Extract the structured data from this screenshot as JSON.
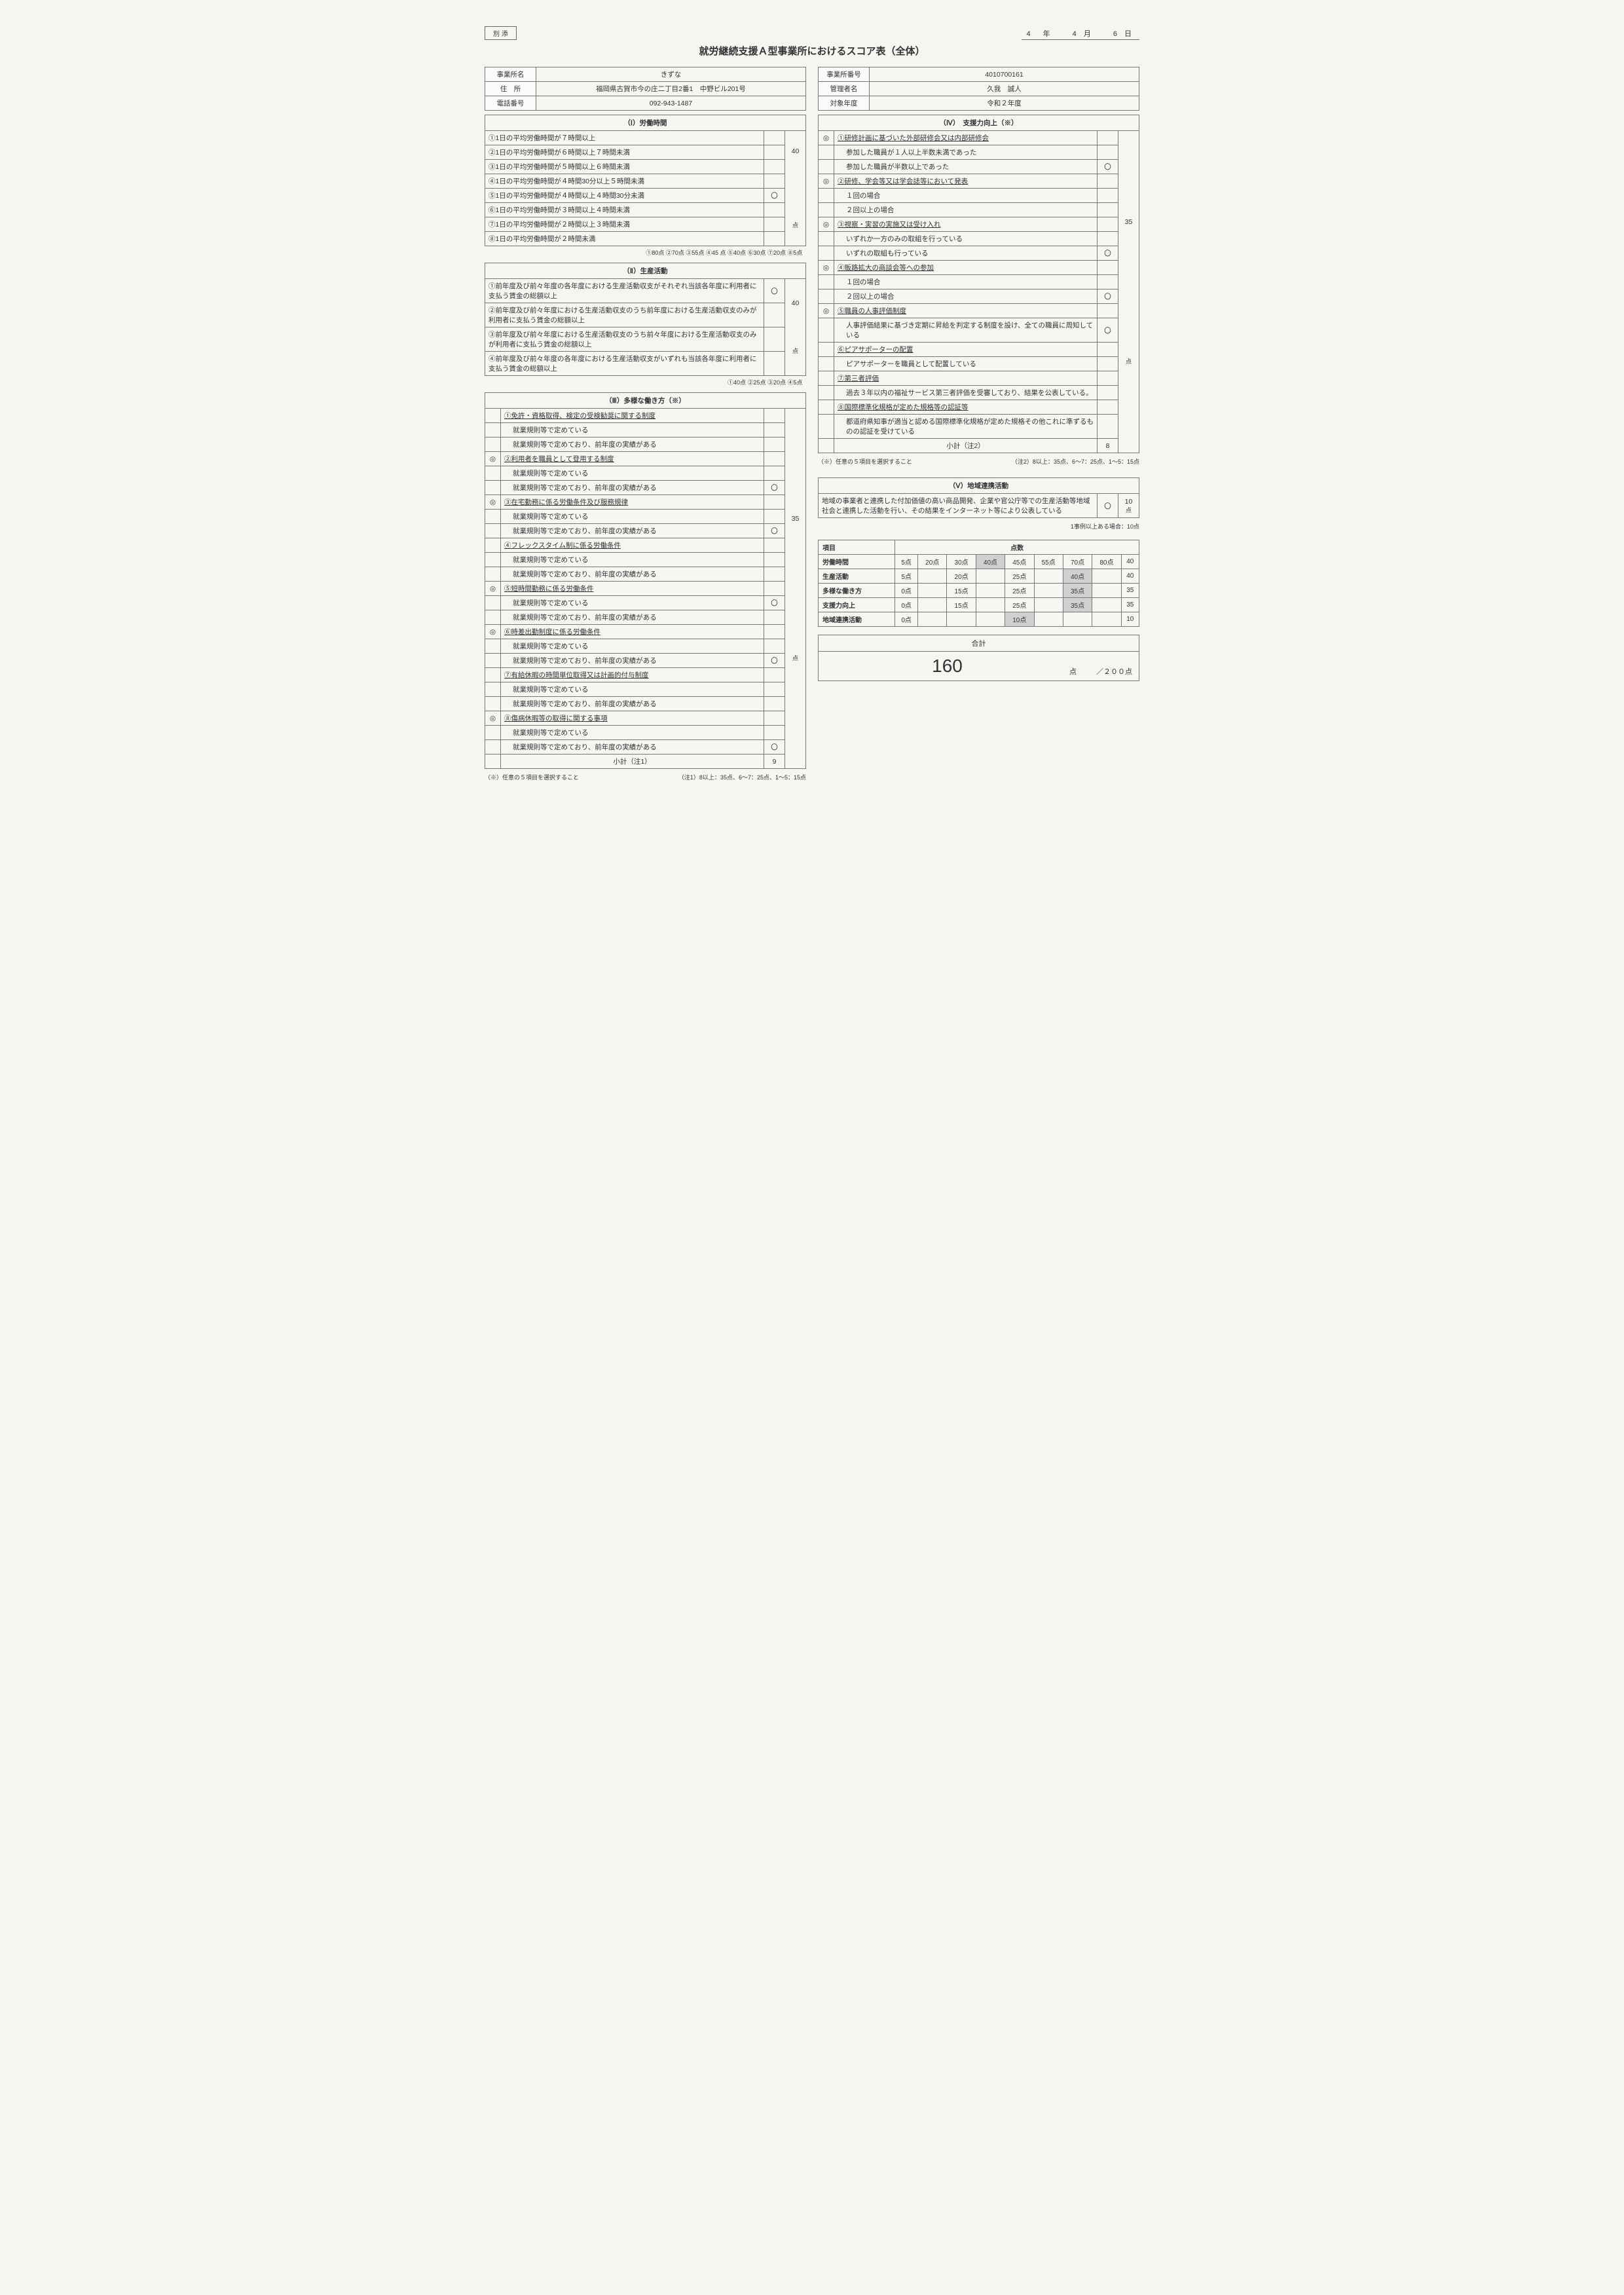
{
  "attach": "別 添",
  "date": "4　年　　4 月　　6 日",
  "title": "就労継続支援Ａ型事業所におけるスコア表（全体）",
  "left_info": {
    "rows": [
      {
        "l": "事業所名",
        "v": "きずな"
      },
      {
        "l": "住　所",
        "v": "福岡県古賀市今の庄二丁目2番1　中野ビル201号"
      },
      {
        "l": "電話番号",
        "v": "092-943-1487"
      }
    ]
  },
  "right_info": {
    "rows": [
      {
        "l": "事業所番号",
        "v": "4010700161"
      },
      {
        "l": "管理者名",
        "v": "久我　誠人"
      },
      {
        "l": "対象年度",
        "v": "令和２年度"
      }
    ]
  },
  "s1": {
    "hdr": "（Ⅰ）労働時間",
    "rows": [
      {
        "t": "①1日の平均労働時間が７時間以上",
        "m": ""
      },
      {
        "t": "②1日の平均労働時間が６時間以上７時間未満",
        "m": ""
      },
      {
        "t": "③1日の平均労働時間が５時間以上６時間未満",
        "m": ""
      },
      {
        "t": "④1日の平均労働時間が４時間30分以上５時間未満",
        "m": ""
      },
      {
        "t": "⑤1日の平均労働時間が４時間以上４時間30分未満",
        "m": "〇"
      },
      {
        "t": "⑥1日の平均労働時間が３時間以上４時間未満",
        "m": ""
      },
      {
        "t": "⑦1日の平均労働時間が２時間以上３時間未満",
        "m": ""
      },
      {
        "t": "⑧1日の平均労働時間が２時間未満",
        "m": ""
      }
    ],
    "score": "40",
    "unit": "点",
    "note": "①80点 ②70点 ③55点 ④45 点 ⑤40点 ⑥30点 ⑦20点 ⑧5点"
  },
  "s2": {
    "hdr": "（Ⅱ）生産活動",
    "rows": [
      {
        "t": "①前年度及び前々年度の各年度における生産活動収支がそれぞれ当該各年度に利用者に支払う賃金の総額以上",
        "m": "〇"
      },
      {
        "t": "②前年度及び前々年度における生産活動収支のうち前年度における生産活動収支のみが利用者に支払う賃金の総額以上",
        "m": ""
      },
      {
        "t": "③前年度及び前々年度における生産活動収支のうち前々年度における生産活動収支のみが利用者に支払う賃金の総額以上",
        "m": ""
      },
      {
        "t": "④前年度及び前々年度の各年度における生産活動収支がいずれも当該各年度に利用者に支払う賃金の総額以上",
        "m": ""
      }
    ],
    "score": "40",
    "unit": "点",
    "note": "①40点 ②25点 ③20点 ④5点"
  },
  "s3": {
    "hdr": "（Ⅲ）多様な働き方（※）",
    "groups": [
      {
        "d": "",
        "h": "①免許・資格取得、検定の受検勧奨に関する制度",
        "a": "就業規則等で定めている",
        "am": "",
        "b": "就業規則等で定めており、前年度の実績がある",
        "bm": ""
      },
      {
        "d": "◎",
        "h": "②利用者を職員として登用する制度",
        "a": "就業規則等で定めている",
        "am": "",
        "b": "就業規則等で定めており、前年度の実績がある",
        "bm": "〇"
      },
      {
        "d": "◎",
        "h": "③在宅勤務に係る労働条件及び服務規律",
        "a": "就業規則等で定めている",
        "am": "",
        "b": "就業規則等で定めており、前年度の実績がある",
        "bm": "〇"
      },
      {
        "d": "",
        "h": "④フレックスタイム制に係る労働条件",
        "a": "就業規則等で定めている",
        "am": "",
        "b": "就業規則等で定めており、前年度の実績がある",
        "bm": ""
      },
      {
        "d": "◎",
        "h": "⑤短時間勤務に係る労働条件",
        "a": "就業規則等で定めている",
        "am": "〇",
        "b": "就業規則等で定めており、前年度の実績がある",
        "bm": ""
      },
      {
        "d": "◎",
        "h": "⑥時差出勤制度に係る労働条件",
        "a": "就業規則等で定めている",
        "am": "",
        "b": "就業規則等で定めており、前年度の実績がある",
        "bm": "〇"
      },
      {
        "d": "",
        "h": "⑦有給休暇の時間単位取得又は計画的付与制度",
        "a": "就業規則等で定めている",
        "am": "",
        "b": "就業規則等で定めており、前年度の実績がある",
        "bm": ""
      },
      {
        "d": "◎",
        "h": "⑧傷病休暇等の取得に関する事項",
        "a": "就業規則等で定めている",
        "am": "",
        "b": "就業規則等で定めており、前年度の実績がある",
        "bm": "〇"
      }
    ],
    "sub_label": "小計（注1）",
    "sub": "9",
    "score": "35",
    "unit": "点",
    "noteL": "（※）任意の５項目を選択すること",
    "noteR": "（注1）8以上：35点、6～7：25点、1～5：15点"
  },
  "s4": {
    "hdr": "（Ⅳ）　支援力向上（※）",
    "groups": [
      {
        "d": "◎",
        "h": "①研修計画に基づいた外部研修会又は内部研修会",
        "rows": [
          {
            "t": "参加した職員が１人以上半数未満であった",
            "m": ""
          },
          {
            "t": "参加した職員が半数以上であった",
            "m": "〇"
          }
        ]
      },
      {
        "d": "◎",
        "h": "②研修、学会等又は学会誌等において発表",
        "rows": [
          {
            "t": "１回の場合",
            "m": ""
          },
          {
            "t": "２回以上の場合",
            "m": ""
          }
        ]
      },
      {
        "d": "◎",
        "h": "③視察・実習の実施又は受け入れ",
        "rows": [
          {
            "t": "いずれか一方のみの取組を行っている",
            "m": ""
          },
          {
            "t": "いずれの取組も行っている",
            "m": "〇"
          }
        ]
      },
      {
        "d": "◎",
        "h": "④販路拡大の商談会等への参加",
        "rows": [
          {
            "t": "１回の場合",
            "m": ""
          },
          {
            "t": "２回以上の場合",
            "m": "〇"
          }
        ]
      },
      {
        "d": "◎",
        "h": "⑤職員の人事評価制度",
        "rows": [
          {
            "t": "人事評価結果に基づき定期に昇給を判定する制度を設け、全ての職員に周知している",
            "m": "〇"
          }
        ]
      },
      {
        "d": "",
        "h": "⑥ピアサポーターの配置",
        "rows": [
          {
            "t": "ピアサポーターを職員として配置している",
            "m": ""
          }
        ]
      },
      {
        "d": "",
        "h": "⑦第三者評価",
        "rows": [
          {
            "t": "過去３年以内の福祉サービス第三者評価を受審しており、結果を公表している。",
            "m": ""
          }
        ]
      },
      {
        "d": "",
        "h": "⑧国際標準化規格が定めた規格等の認証等",
        "rows": [
          {
            "t": "都道府県知事が適当と認める国際標準化規格が定めた規格その他これに準ずるものの認証を受けている",
            "m": ""
          }
        ]
      }
    ],
    "sub_label": "小計（注2）",
    "sub": "8",
    "score": "35",
    "unit": "点",
    "noteL": "（※）任意の５項目を選択すること",
    "noteR": "（注2）8以上：35点、6～7：25点、1～5：15点"
  },
  "s5": {
    "hdr": "（Ⅴ）地域連携活動",
    "text": "地域の事業者と連携した付加価値の高い商品開発、企業や官公庁等での生産活動等地域社会と連携した活動を行い、その結果をインターネット等により公表している",
    "mark": "〇",
    "score": "10",
    "unit": "点",
    "note": "1事例以上ある場合：10点"
  },
  "summary": {
    "h1": "項目",
    "h2": "点数",
    "cols": [
      "5点",
      "20点",
      "30点",
      "40点",
      "45点",
      "55点",
      "70点",
      "80点"
    ],
    "rows": [
      {
        "l": "労働時間",
        "c": [
          "5点",
          "20点",
          "30点",
          "40点",
          "45点",
          "55点",
          "70点",
          "80点"
        ],
        "hl": 3,
        "v": "40"
      },
      {
        "l": "生産活動",
        "c": [
          "5点",
          "",
          "20点",
          "",
          "25点",
          "",
          "40点",
          ""
        ],
        "hl": 6,
        "v": "40"
      },
      {
        "l": "多様な働き方",
        "c": [
          "0点",
          "",
          "15点",
          "",
          "25点",
          "",
          "35点",
          ""
        ],
        "hl": 6,
        "v": "35"
      },
      {
        "l": "支援力向上",
        "c": [
          "0点",
          "",
          "15点",
          "",
          "25点",
          "",
          "35点",
          ""
        ],
        "hl": 6,
        "v": "35"
      },
      {
        "l": "地域連携活動",
        "c": [
          "0点",
          "",
          "",
          "",
          "10点",
          "",
          "",
          ""
        ],
        "hl": 4,
        "v": "10"
      }
    ]
  },
  "total": {
    "label": "合計",
    "value": "160",
    "unit": "点",
    "max": "／２００点"
  }
}
